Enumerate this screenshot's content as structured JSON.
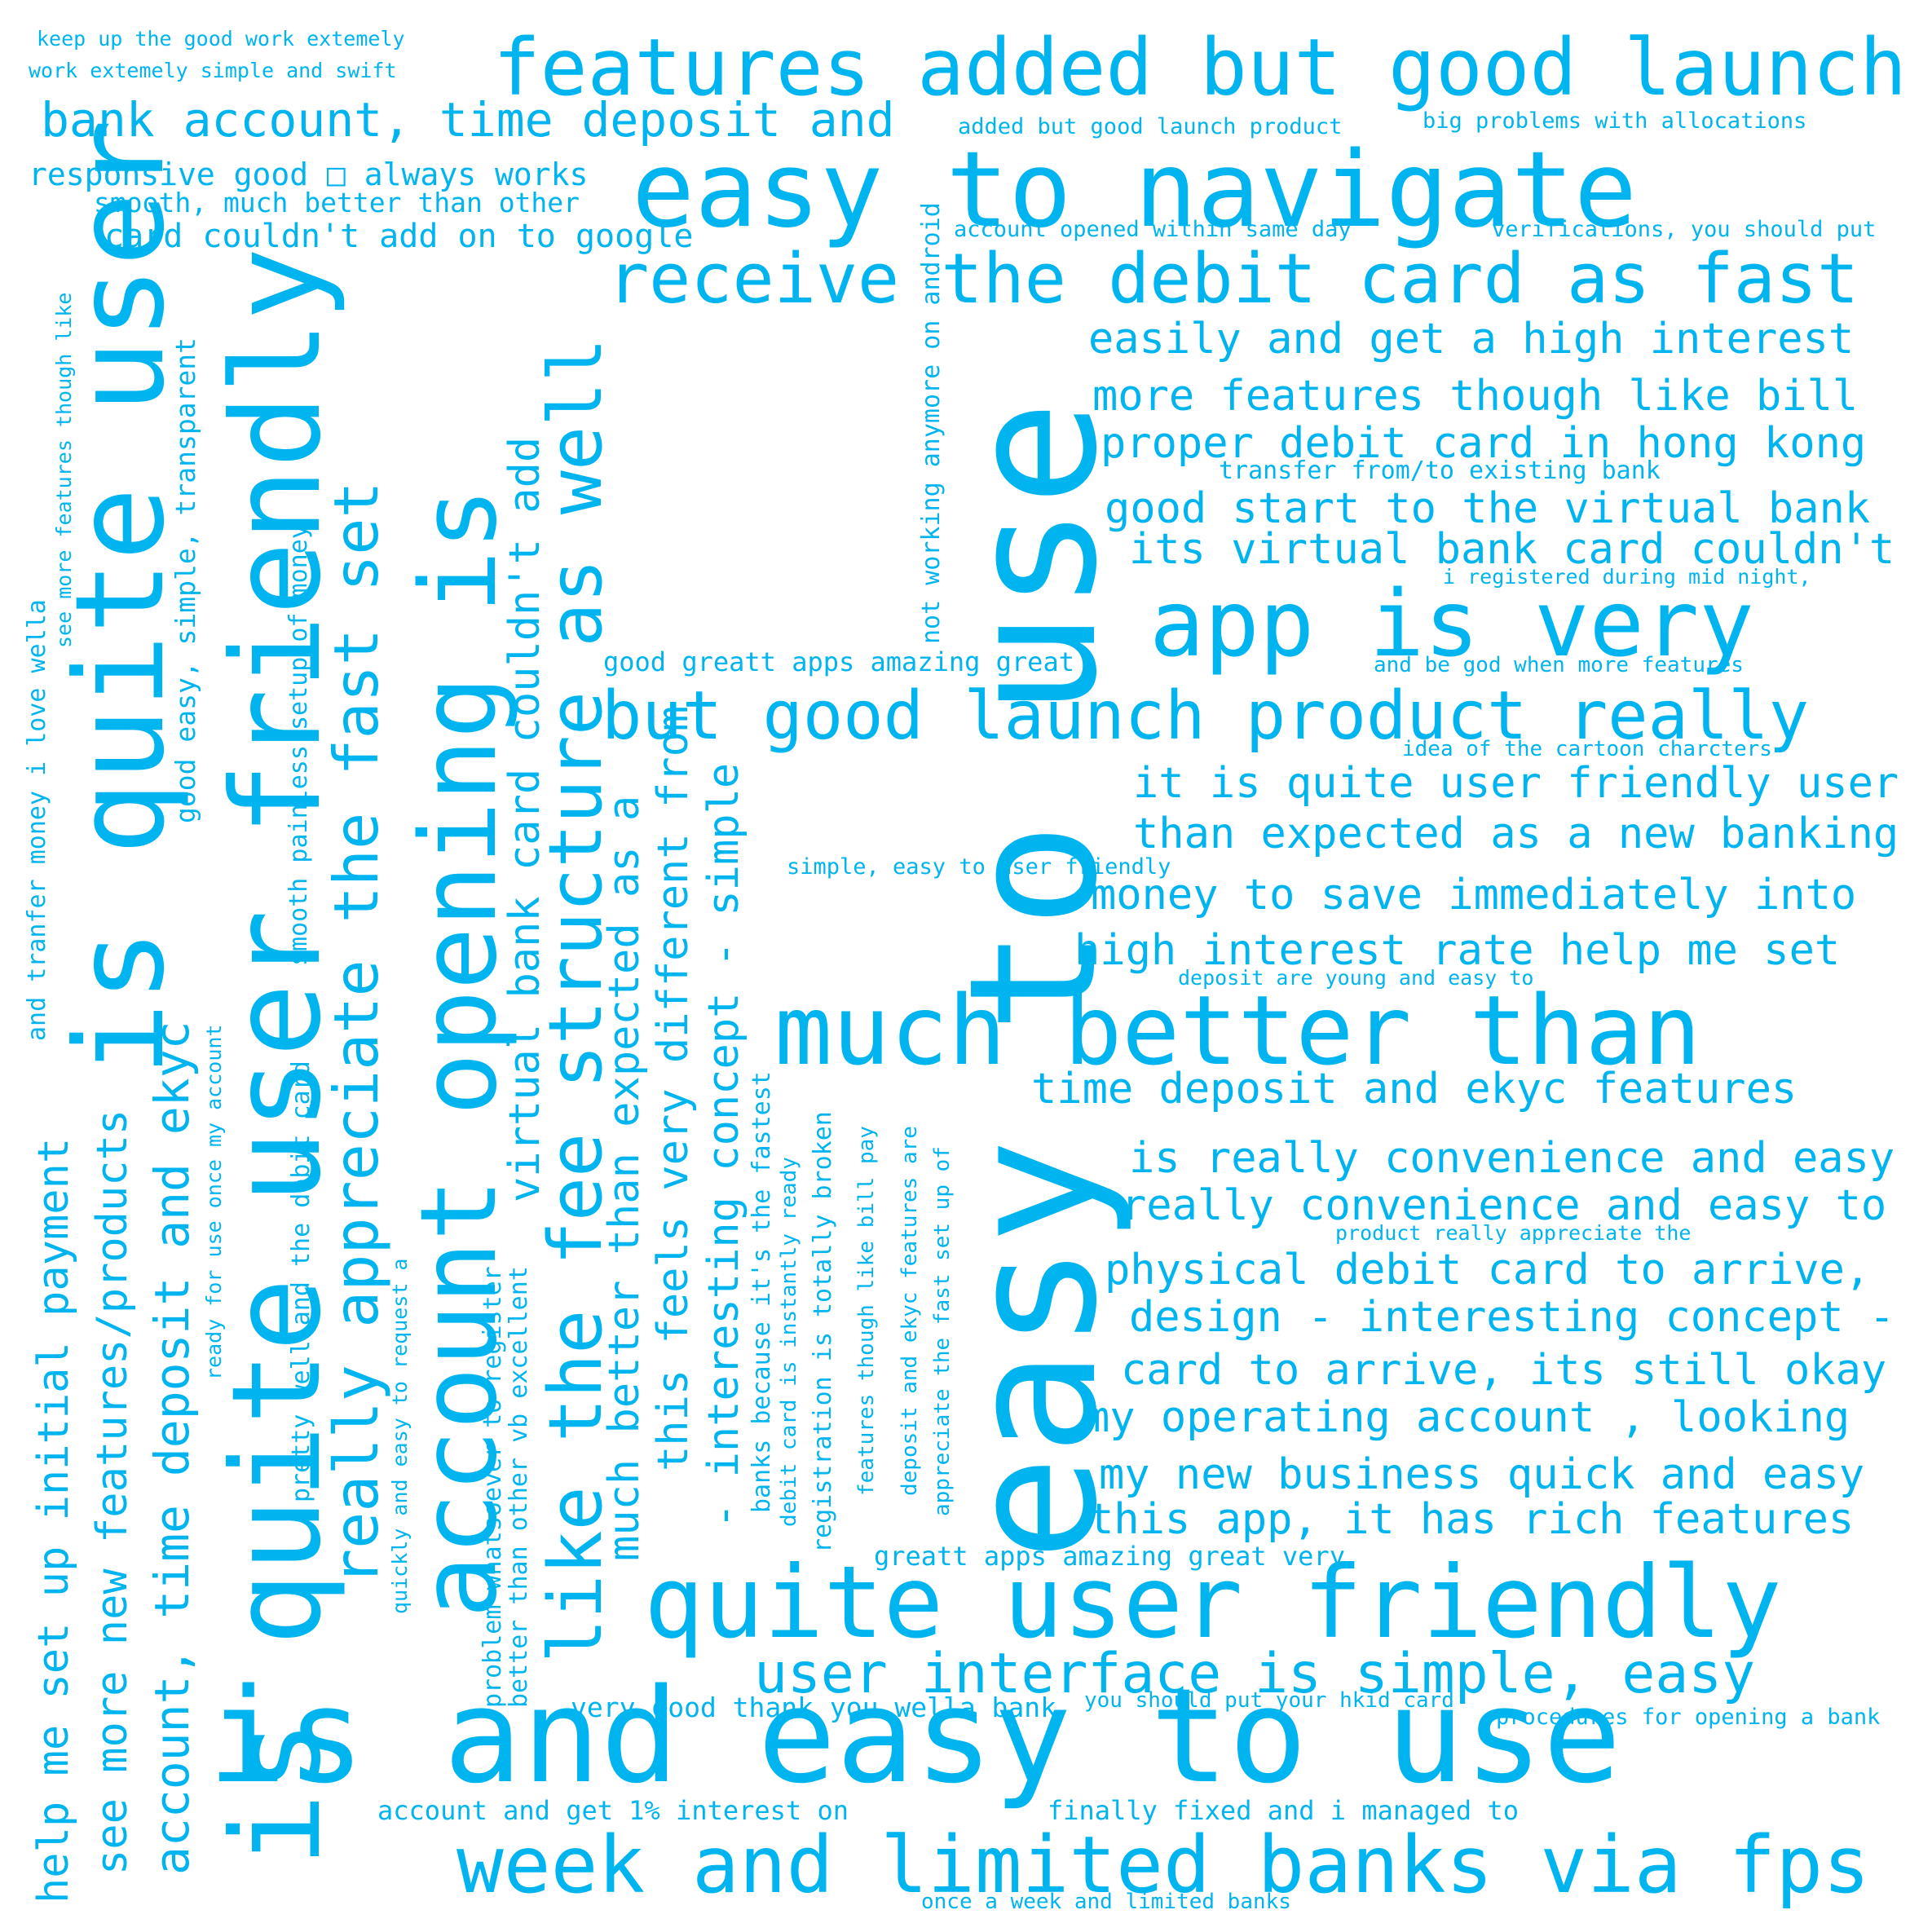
{
  "color": "#00b4f0",
  "phrases": {
    "p01": "keep up the good work extemely",
    "p02": "work extemely simple and swift",
    "p03": "features added but good launch",
    "p04": "bank account, time deposit and",
    "p05": "added but good launch product",
    "p06": "big problems with allocations",
    "p07": "responsive good □ always works",
    "p08": "smooth, much better than other",
    "p09": "easy to navigate",
    "p10": "card couldn't add on to google",
    "p11": "account opened within same day",
    "p12": "verifications, you should put",
    "p13": "receive the debit card as fast",
    "p14": "easily and get a high interest",
    "p15": "more features though like bill",
    "p16": "proper debit card in hong kong",
    "p17": "transfer from/to existing bank",
    "p18": "good start to the virtual bank",
    "p19": "its virtual bank card couldn't",
    "p20": "i registered during mid night,",
    "p21": "app is very",
    "p22": "good greatt apps amazing great",
    "p23": "and be god when more features",
    "p24": "but good launch product really",
    "p25": "idea of the cartoon charcters",
    "p26": "it is quite user friendly user",
    "p27": "than expected as a new banking",
    "p28": "simple, easy to user friendly",
    "p29": "money to save immediately into",
    "p30": "high interest rate help me set",
    "p31": "deposit are young and easy to",
    "p32": "much better than",
    "p33": "time deposit and ekyc features",
    "p34": "is really convenience and easy",
    "p35": "really convenience and easy to",
    "p36": "product really appreciate the",
    "p37": "physical debit card to arrive,",
    "p38": "design - interesting concept -",
    "p39": "card to arrive, its still okay",
    "p40": "my operating account , looking",
    "p41": "my new business quick and easy",
    "p42": "this app, it has rich features",
    "p43": "greatt apps amazing great very",
    "p44": "quite user friendly",
    "p45": "user interface is simple, easy",
    "p46": "very good thank you wella bank",
    "p47": "you should put your hkid card",
    "p48": "procedures for opening a bank",
    "p49": "is and easy to use",
    "p50": "account and get 1% interest on",
    "p51": "finally fixed and i managed to",
    "p52": "week and limited banks via fps",
    "p53": "once a week and limited banks",
    "v01": "and tranfer money i love wella",
    "v02": "see more features though like",
    "v03": "help me set up initial payment",
    "v04": "is quite user",
    "v05": "see more new features/products",
    "v06": "account, time deposit and ekyc",
    "v07": "ready for use once my account",
    "v08": "good easy, simple, transparent",
    "v09": "is quite user friendly",
    "v10": "pretty well and the debit card",
    "v11": "smooth painless setup of money",
    "v12": "really appreciate the fast set",
    "v13": "quickly and easy to request a",
    "v14": "account opening is",
    "v15": "problem whatsoever to register",
    "v16": "better than other vb excellent",
    "v17": "virtual bank card couldn't add",
    "v18": "like the fee structure as well",
    "v19": "much better than expected as a",
    "v20": "this feels very different from",
    "v21": "- interesting concept - simple",
    "v22": "banks because it's the fastest",
    "v23": "debit card is instantly ready",
    "v24": "registration is totally broken",
    "v25": "features though like bill pay",
    "v26": "deposit and ekyc features are",
    "v27": "appreciate the fast set up of",
    "v28": "not working anymore on android",
    "v29": "easy to use"
  }
}
